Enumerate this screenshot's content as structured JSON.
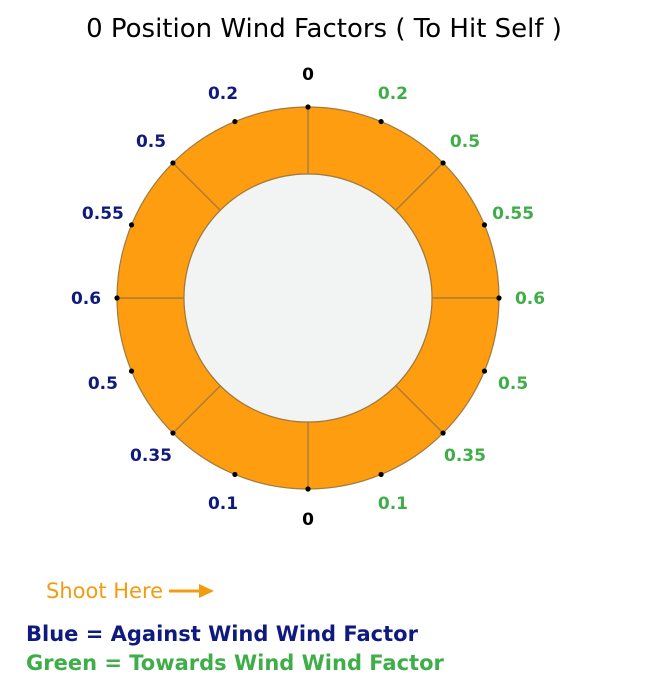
{
  "title": "0 Position Wind Factors ( To Hit Self )",
  "colors": {
    "ring": "#fe9d0f",
    "ring_stroke": "#a07a40",
    "inner": "#f2f4f4",
    "against": "#0e1a7e",
    "towards": "#3fae49",
    "neutral": "#000000",
    "shoot": "#f39c12"
  },
  "wheel": {
    "top_label": "0",
    "bottom_label": "0",
    "against_labels": [
      "0.2",
      "0.5",
      "0.55",
      "0.6",
      "0.5",
      "0.35",
      "0.1"
    ],
    "towards_labels": [
      "0.2",
      "0.5",
      "0.55",
      "0.6",
      "0.5",
      "0.35",
      "0.1"
    ]
  },
  "shoot_here": {
    "label": "Shoot Here",
    "icon": "arrow-right-icon"
  },
  "legend": {
    "blue": "Blue = Against Wind Wind Factor",
    "green": "Green = Towards Wind Wind Factor"
  }
}
